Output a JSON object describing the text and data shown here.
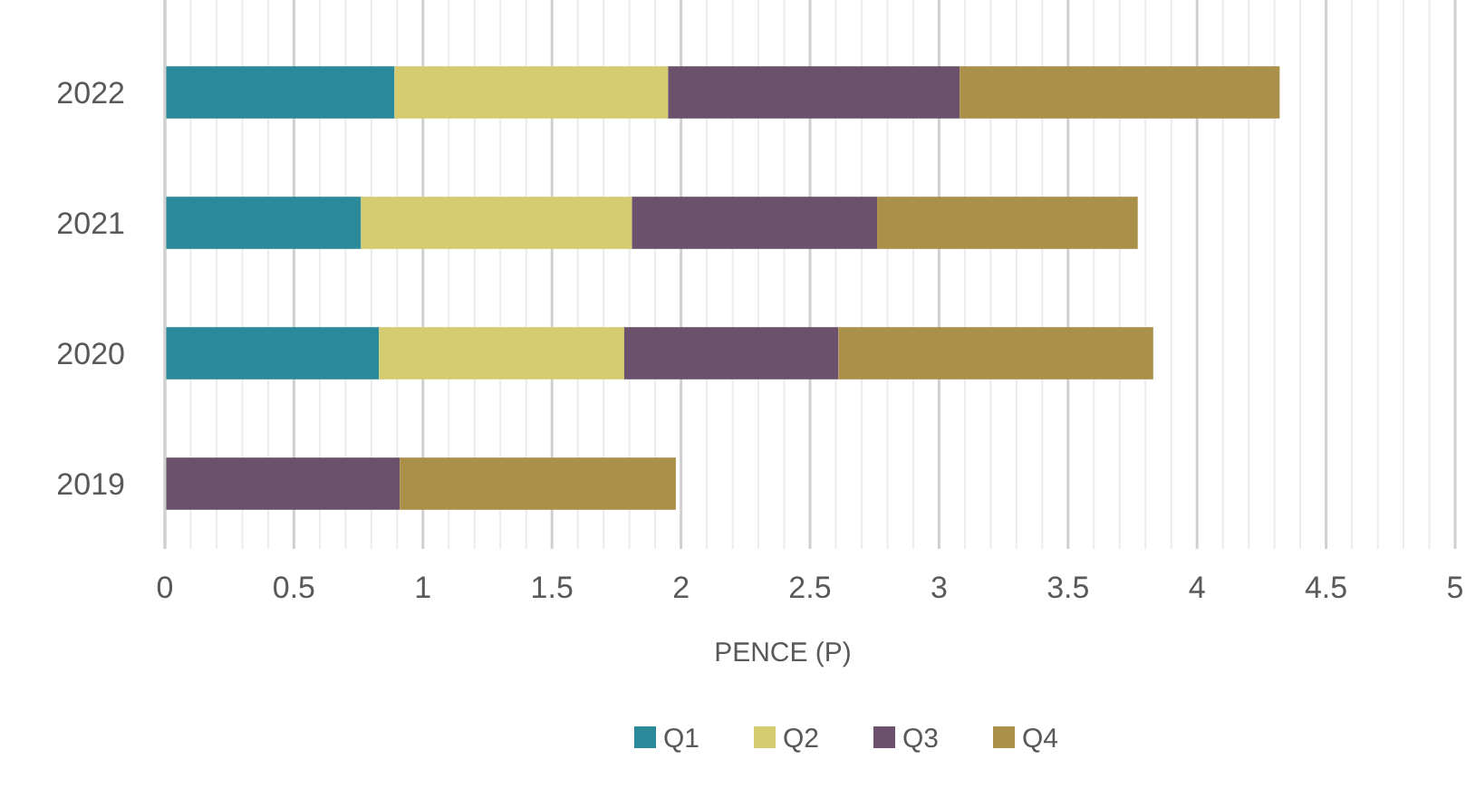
{
  "chart_data": {
    "type": "bar",
    "orientation": "horizontal",
    "stacked": true,
    "xlabel": "PENCE (P)",
    "categories": [
      "2022",
      "2021",
      "2020",
      "2019"
    ],
    "series": [
      {
        "name": "Q1",
        "color": "#2b8a99",
        "values": [
          0.89,
          0.76,
          0.83,
          null
        ]
      },
      {
        "name": "Q2",
        "color": "#d5cb6f",
        "values": [
          1.06,
          1.05,
          0.95,
          null
        ]
      },
      {
        "name": "Q3",
        "color": "#6b516b",
        "values": [
          1.13,
          0.95,
          0.83,
          0.91
        ]
      },
      {
        "name": "Q4",
        "color": "#ab904a",
        "values": [
          1.24,
          1.01,
          1.22,
          1.07
        ]
      }
    ],
    "xlim": [
      0,
      5
    ],
    "xticks": [
      0,
      {
        "value": 0.1,
        "label": null
      },
      {
        "value": 0.2,
        "label": null
      },
      {
        "value": 0.3,
        "label": null
      },
      {
        "value": 0.4,
        "label": null
      },
      0.5,
      {
        "value": 0.6,
        "label": null
      },
      {
        "value": 0.7,
        "label": null
      },
      {
        "value": 0.8,
        "label": null
      },
      {
        "value": 0.9,
        "label": null
      },
      1,
      {
        "value": 1.1,
        "label": null
      },
      {
        "value": 1.2,
        "label": null
      },
      {
        "value": 1.3,
        "label": null
      },
      {
        "value": 1.4,
        "label": null
      },
      1.5,
      {
        "value": 1.6,
        "label": null
      },
      {
        "value": 1.7,
        "label": null
      },
      {
        "value": 1.8,
        "label": null
      },
      {
        "value": 1.9,
        "label": null
      },
      2,
      {
        "value": 2.1,
        "label": null
      },
      {
        "value": 2.2,
        "label": null
      },
      {
        "value": 2.3,
        "label": null
      },
      {
        "value": 2.4,
        "label": null
      },
      2.5,
      {
        "value": 2.6,
        "label": null
      },
      {
        "value": 2.7,
        "label": null
      },
      {
        "value": 2.8,
        "label": null
      },
      {
        "value": 2.9,
        "label": null
      },
      3,
      {
        "value": 3.1,
        "label": null
      },
      {
        "value": 3.2,
        "label": null
      },
      {
        "value": 3.3,
        "label": null
      },
      {
        "value": 3.4,
        "label": null
      },
      3.5,
      {
        "value": 3.6,
        "label": null
      },
      {
        "value": 3.7,
        "label": null
      },
      {
        "value": 3.8,
        "label": null
      },
      {
        "value": 3.9,
        "label": null
      },
      4,
      {
        "value": 4.1,
        "label": null
      },
      {
        "value": 4.2,
        "label": null
      },
      {
        "value": 4.3,
        "label": null
      },
      {
        "value": 4.4,
        "label": null
      },
      4.5,
      {
        "value": 4.6,
        "label": null
      },
      {
        "value": 4.7,
        "label": null
      },
      {
        "value": 4.8,
        "label": null
      },
      {
        "value": 4.9,
        "label": null
      },
      5
    ],
    "grid": "x",
    "legend": "bottom"
  }
}
